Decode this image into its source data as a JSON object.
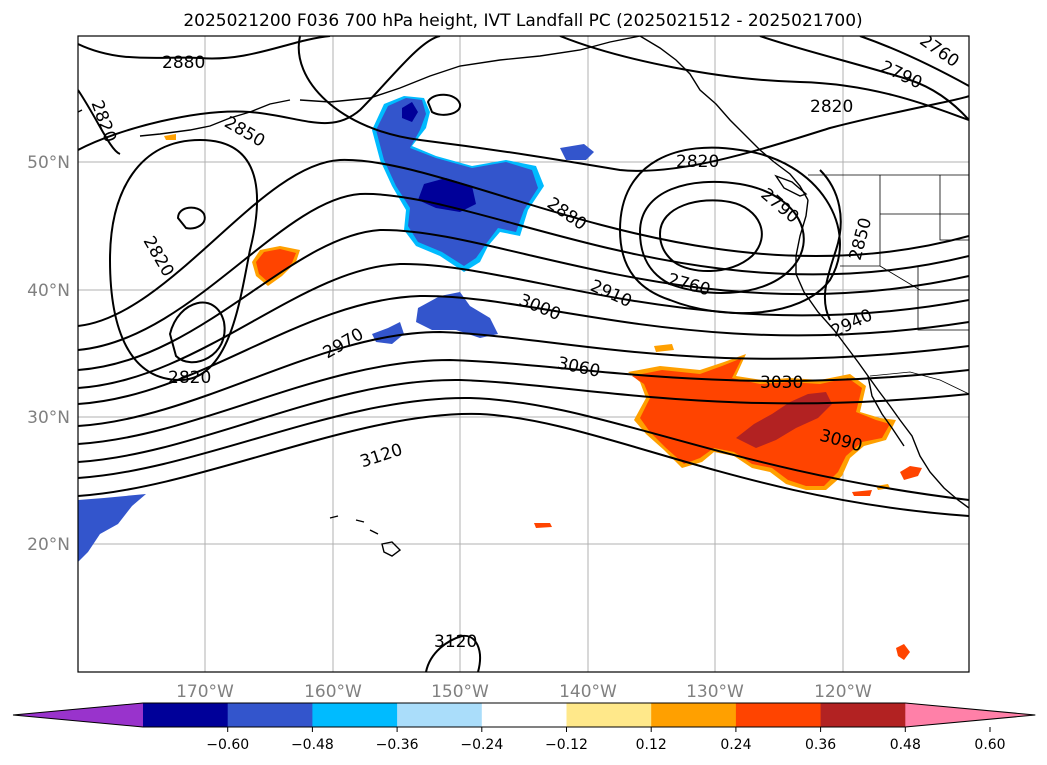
{
  "title": "2025021200 F036 700 hPa height, IVT Landfall PC (2025021512 - 2025021700)",
  "lat_labels": [
    "50°N",
    "40°N",
    "30°N",
    "20°N"
  ],
  "lon_labels": [
    "170°W",
    "160°W",
    "150°W",
    "140°W",
    "130°W",
    "120°W"
  ],
  "contour_labels": [
    "2880",
    "2820",
    "2850",
    "2820",
    "2820",
    "2880",
    "2970",
    "3000",
    "3060",
    "3120",
    "2910",
    "2820",
    "2760",
    "2790",
    "2820",
    "2790",
    "2760",
    "2850",
    "2940",
    "3030",
    "3090",
    "3120"
  ],
  "colorbar": {
    "ticks": [
      "−0.60",
      "−0.48",
      "−0.36",
      "−0.24",
      "−0.12",
      "0.12",
      "0.24",
      "0.36",
      "0.48",
      "0.60"
    ],
    "colors": [
      "#9933cc",
      "#000099",
      "#3355cc",
      "#00bbff",
      "#aaddfa",
      "#ffffff",
      "#ffe88a",
      "#ffa000",
      "#ff4400",
      "#b22222",
      "#ff80a8"
    ]
  },
  "colors": {
    "neg_light": "#00bbff",
    "neg_mid": "#3355cc",
    "neg_dark": "#000099",
    "pos_orange": "#ffa000",
    "pos_red": "#ff4400",
    "pos_dark": "#b22222",
    "pos_yellow": "#ffe88a"
  }
}
